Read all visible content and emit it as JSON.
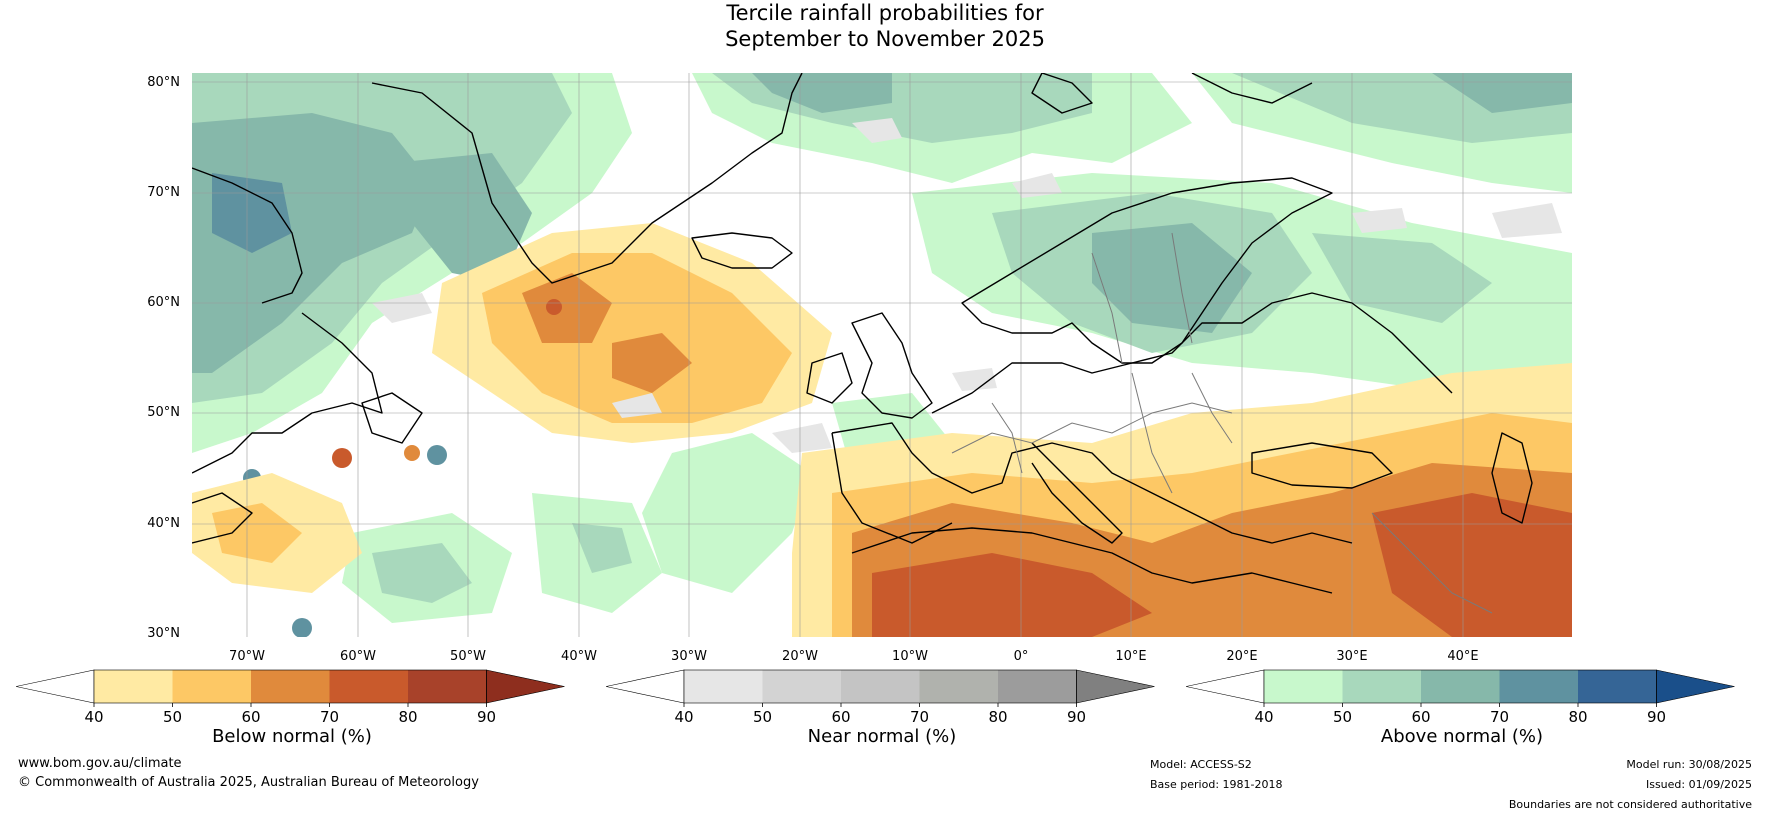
{
  "title": {
    "line1": "Tercile rainfall probabilities for",
    "line2": "September to November 2025"
  },
  "latitude_labels": [
    "80°N",
    "70°N",
    "60°N",
    "50°N",
    "40°N",
    "30°N"
  ],
  "longitude_labels": [
    "70°W",
    "60°W",
    "50°W",
    "40°W",
    "30°W",
    "20°W",
    "10°W",
    "0°",
    "10°E",
    "20°E",
    "30°E",
    "40°E"
  ],
  "colorbars": [
    {
      "label": "Below normal (%)",
      "ticks": [
        "40",
        "50",
        "60",
        "70",
        "80",
        "90"
      ],
      "colors": [
        "#ffffff",
        "#ffeaa3",
        "#fdc865",
        "#e08a3c",
        "#c95a2c",
        "#a8422a",
        "#8e2e1e"
      ]
    },
    {
      "label": "Near normal (%)",
      "ticks": [
        "40",
        "50",
        "60",
        "70",
        "80",
        "90"
      ],
      "colors": [
        "#ffffff",
        "#e6e6e6",
        "#d3d3d3",
        "#c4c4c4",
        "#b0b2ad",
        "#9c9c9c",
        "#808080"
      ]
    },
    {
      "label": "Above normal (%)",
      "ticks": [
        "40",
        "50",
        "60",
        "70",
        "80",
        "90"
      ],
      "colors": [
        "#ffffff",
        "#c8f8cc",
        "#a8d8bc",
        "#86b8aa",
        "#5f92a0",
        "#356596",
        "#1a4f8a"
      ]
    }
  ],
  "map": {
    "ocean_colors": {
      "white": "#ffffff",
      "above_50": "#c8f8cc",
      "above_60": "#a8d8bc",
      "above_70": "#86b8aa",
      "above_80": "#5f92a0",
      "below_50": "#ffeaa3",
      "below_60": "#fdc865",
      "below_70": "#e08a3c",
      "below_80": "#c95a2c",
      "near_50": "#e6e6e6"
    }
  },
  "footer": {
    "website": "www.bom.gov.au/climate",
    "copyright": "© Commonwealth of Australia 2025, Australian Bureau of Meteorology",
    "model": "Model: ACCESS-S2",
    "base_period": "Base period: 1981-2018",
    "model_run": "Model run: 30/08/2025",
    "issued": "Issued: 01/09/2025",
    "disclaimer": "Boundaries are not considered authoritative"
  }
}
